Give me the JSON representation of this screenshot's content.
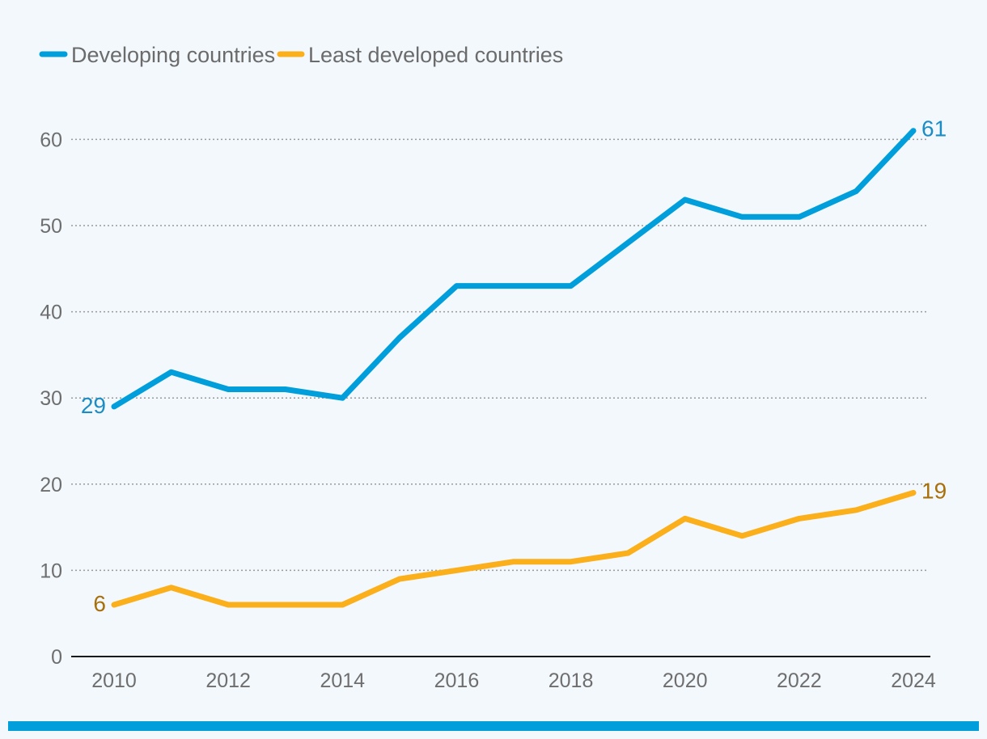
{
  "chart_data": {
    "type": "line",
    "title": "",
    "xlabel": "",
    "ylabel": "",
    "x": [
      2010,
      2011,
      2012,
      2013,
      2014,
      2015,
      2016,
      2017,
      2018,
      2019,
      2020,
      2021,
      2022,
      2023,
      2024
    ],
    "x_tick_labels": [
      "2010",
      "2012",
      "2014",
      "2016",
      "2018",
      "2020",
      "2022",
      "2024"
    ],
    "xlim": [
      2010,
      2024
    ],
    "ylim": [
      0,
      65
    ],
    "y_ticks": [
      0,
      10,
      20,
      30,
      40,
      50,
      60
    ],
    "grid": "horizontal dotted",
    "legend_position": "top-left",
    "series": [
      {
        "name": "Developing countries",
        "color": "#009edb",
        "label_color": "#1c8cc5",
        "values": [
          29,
          33,
          31,
          31,
          30,
          37,
          43,
          43,
          43,
          48,
          53,
          51,
          51,
          54,
          61
        ],
        "start_label": "29",
        "end_label": "61"
      },
      {
        "name": "Least developed countries",
        "color": "#fbaf1a",
        "label_color": "#a8700a",
        "values": [
          6,
          8,
          6,
          6,
          6,
          9,
          10,
          11,
          11,
          12,
          16,
          14,
          16,
          17,
          19
        ],
        "start_label": "6",
        "end_label": "19"
      }
    ]
  },
  "colors": {
    "background": "#f3f8fc",
    "axis": "#1a1a1a",
    "grid": "#9a9a9a",
    "tick_text": "#6e6e6e",
    "bottom_bar": "#009edb"
  }
}
